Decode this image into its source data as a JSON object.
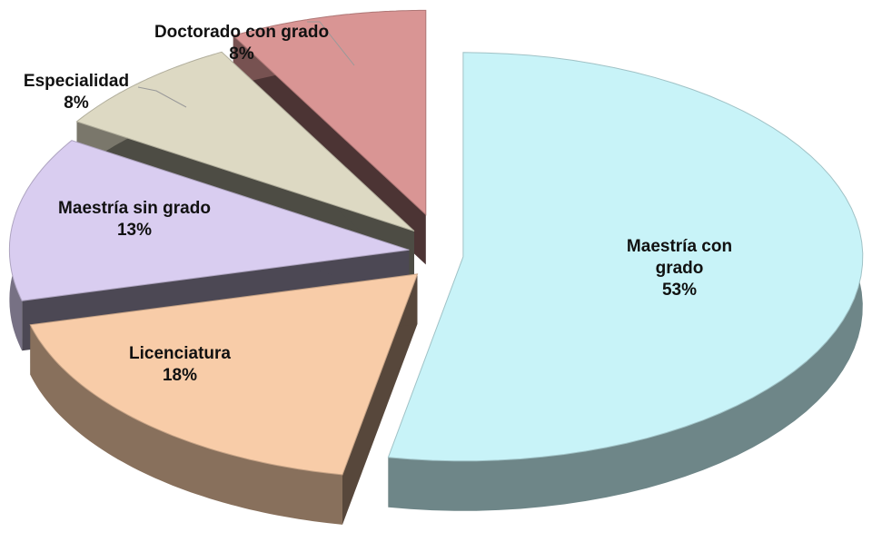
{
  "chart_data": {
    "type": "pie3d",
    "categories": [
      "Maestría con grado",
      "Licenciatura",
      "Maestría sin grado",
      "Especialidad",
      "Doctorado con grado"
    ],
    "values": [
      53,
      18,
      13,
      8,
      8
    ],
    "value_labels": [
      "53%",
      "18%",
      "13%",
      "8%",
      "8%"
    ],
    "colors": [
      "#c8f3f8",
      "#f8cca8",
      "#d9cdf0",
      "#ddd9c3",
      "#d99594"
    ]
  }
}
